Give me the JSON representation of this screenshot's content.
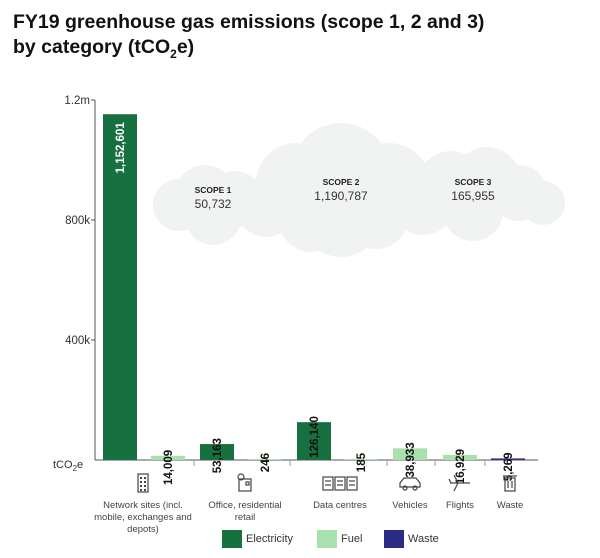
{
  "title_line1": "FY19 greenhouse gas emissions (scope 1, 2 and 3)",
  "title_line2_prefix": "by category (tCO",
  "title_line2_sub": "2",
  "title_line2_suffix": "e)",
  "colors": {
    "Electricity": "#17703f",
    "Fuel": "#a8e1ae",
    "Waste": "#2b2d84",
    "axis": "#555555",
    "cloud": "#f1f2f2"
  },
  "scope_clouds": [
    {
      "label": "SCOPE 1",
      "value": "50,732"
    },
    {
      "label": "SCOPE 2",
      "value": "1,190,787"
    },
    {
      "label": "SCOPE 3",
      "value": "165,955"
    }
  ],
  "chart_data": {
    "type": "bar",
    "ylim": [
      0,
      1200000
    ],
    "yticks": [
      {
        "value": 400000,
        "label": "400k"
      },
      {
        "value": 800000,
        "label": "800k"
      },
      {
        "value": 1200000,
        "label": "1.2m"
      }
    ],
    "yunit_label_prefix": "tCO",
    "yunit_label_sub": "2",
    "yunit_label_suffix": "e",
    "categories": [
      {
        "label": "Network sites (incl. mobile, exchanges and depots)",
        "icon": "building-icon"
      },
      {
        "label": "Office, residential retail",
        "icon": "office-icon"
      },
      {
        "label": "Data centres",
        "icon": "server-rack-icon"
      },
      {
        "label": "Vehicles",
        "icon": "car-icon"
      },
      {
        "label": "Flights",
        "icon": "airplane-icon"
      },
      {
        "label": "Waste",
        "icon": "trash-bin-icon"
      }
    ],
    "bars": [
      {
        "category": 0,
        "series": "Electricity",
        "value": 1152601,
        "label": "1,152,601"
      },
      {
        "category": 0,
        "series": "Fuel",
        "value": 14009,
        "label": "14,009"
      },
      {
        "category": 1,
        "series": "Electricity",
        "value": 53163,
        "label": "53,163"
      },
      {
        "category": 1,
        "series": "Fuel",
        "value": 246,
        "label": "246"
      },
      {
        "category": 2,
        "series": "Electricity",
        "value": 126140,
        "label": "126,140"
      },
      {
        "category": 2,
        "series": "Fuel",
        "value": 185,
        "label": "185"
      },
      {
        "category": 3,
        "series": "Fuel",
        "value": 38933,
        "label": "38,933"
      },
      {
        "category": 4,
        "series": "Fuel",
        "value": 16929,
        "label": "16,929"
      },
      {
        "category": 5,
        "series": "Waste",
        "value": 5269,
        "label": "5,269"
      }
    ],
    "legend": [
      "Electricity",
      "Fuel",
      "Waste"
    ],
    "legend_position": "bottom-center"
  }
}
